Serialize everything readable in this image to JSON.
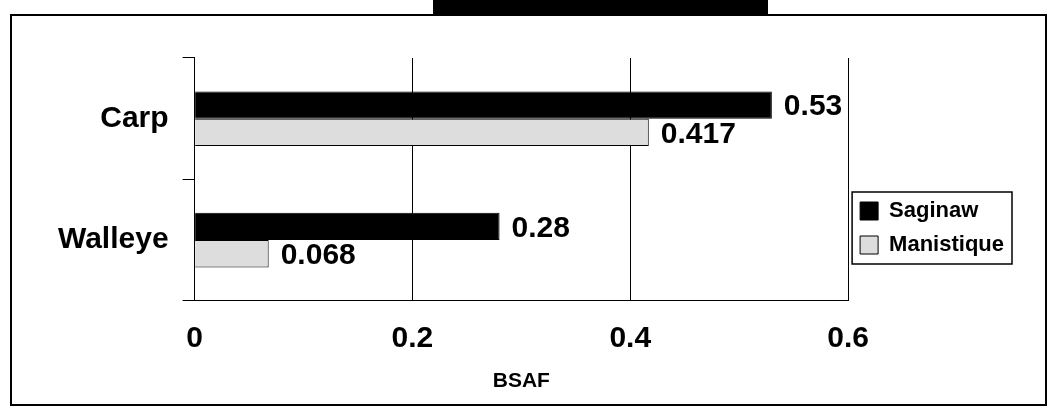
{
  "chart_data": {
    "type": "bar",
    "orientation": "horizontal",
    "xlabel": "BSAF",
    "categories": [
      "Carp",
      "Walleye"
    ],
    "series": [
      {
        "name": "Saginaw",
        "color": "#000000",
        "values": [
          0.53,
          0.28
        ]
      },
      {
        "name": "Manistique",
        "color": "#dddddd",
        "values": [
          0.417,
          0.068
        ]
      }
    ],
    "xlim": [
      0,
      0.6
    ],
    "xticks": [
      0,
      0.2,
      0.4,
      0.6
    ],
    "grid": "x",
    "legend": "right",
    "data_labels": true
  }
}
